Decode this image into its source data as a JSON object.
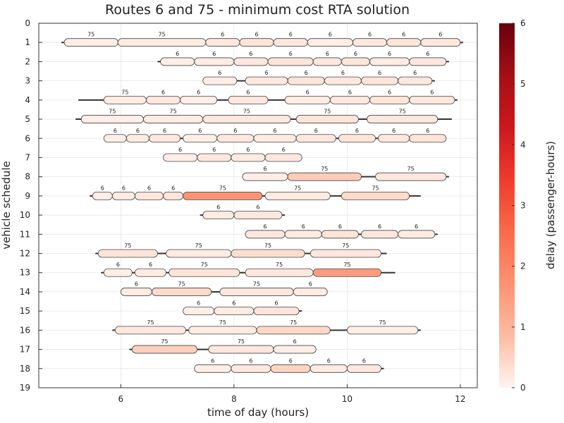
{
  "chart_data": {
    "type": "gantt",
    "title": "Routes 6 and 75 - minimum cost RTA solution",
    "xlabel": "time of day (hours)",
    "ylabel": "vehicle schedule",
    "xlim": [
      4.55,
      12.3
    ],
    "ylim": [
      0,
      19
    ],
    "xticks": [
      6,
      8,
      10,
      12
    ],
    "yticks": [
      0,
      1,
      2,
      3,
      4,
      5,
      6,
      7,
      8,
      9,
      10,
      11,
      12,
      13,
      14,
      15,
      16,
      17,
      18,
      19
    ],
    "grid": true,
    "colorbar": {
      "label": "delay (passenger-hours)",
      "min": 0,
      "max": 6,
      "ticks": [
        0,
        1,
        2,
        3,
        4,
        5,
        6
      ],
      "colors": [
        "#fff5f0",
        "#fcbba1",
        "#fc9272",
        "#fb6a4a",
        "#ef3b2c",
        "#cb181d",
        "#a50f15",
        "#67000d"
      ]
    },
    "schedules": [
      {
        "vehicle": 1,
        "span": [
          4.95,
          12.05
        ],
        "trips": [
          {
            "route": "75",
            "start": 5.0,
            "end": 5.95,
            "delay": 0.1
          },
          {
            "route": "75",
            "start": 5.95,
            "end": 7.5,
            "delay": 0.15
          },
          {
            "route": "6",
            "start": 7.5,
            "end": 8.1,
            "delay": 0.2
          },
          {
            "route": "6",
            "start": 8.1,
            "end": 8.7,
            "delay": 0.25
          },
          {
            "route": "6",
            "start": 8.7,
            "end": 9.3,
            "delay": 0.2
          },
          {
            "route": "6",
            "start": 9.3,
            "end": 10.1,
            "delay": 0.1
          },
          {
            "route": "6",
            "start": 10.1,
            "end": 10.7,
            "delay": 0.2
          },
          {
            "route": "6",
            "start": 10.7,
            "end": 11.3,
            "delay": 0.25
          },
          {
            "route": "6",
            "start": 11.3,
            "end": 12.0,
            "delay": 0.2
          }
        ]
      },
      {
        "vehicle": 2,
        "span": [
          6.65,
          11.8
        ],
        "trips": [
          {
            "route": "6",
            "start": 6.7,
            "end": 7.3,
            "delay": 0.1
          },
          {
            "route": "6",
            "start": 7.3,
            "end": 8.0,
            "delay": 0.15
          },
          {
            "route": "6",
            "start": 8.0,
            "end": 8.6,
            "delay": 0.2
          },
          {
            "route": "6",
            "start": 8.6,
            "end": 9.4,
            "delay": 0.25
          },
          {
            "route": "6",
            "start": 9.4,
            "end": 9.9,
            "delay": 0.2
          },
          {
            "route": "6",
            "start": 9.9,
            "end": 10.4,
            "delay": 0.25
          },
          {
            "route": "6",
            "start": 10.4,
            "end": 11.1,
            "delay": 0.15
          },
          {
            "route": "6",
            "start": 11.1,
            "end": 11.75,
            "delay": 0.2
          }
        ]
      },
      {
        "vehicle": 3,
        "span": [
          7.45,
          11.55
        ],
        "trips": [
          {
            "route": "6",
            "start": 7.45,
            "end": 8.05,
            "delay": 0.1
          },
          {
            "route": "6",
            "start": 8.2,
            "end": 8.95,
            "delay": 0.2
          },
          {
            "route": "6",
            "start": 8.95,
            "end": 9.6,
            "delay": 0.25
          },
          {
            "route": "6",
            "start": 9.6,
            "end": 10.25,
            "delay": 0.2
          },
          {
            "route": "6",
            "start": 10.25,
            "end": 10.9,
            "delay": 0.25
          },
          {
            "route": "6",
            "start": 10.9,
            "end": 11.5,
            "delay": 0.2
          }
        ]
      },
      {
        "vehicle": 4,
        "span": [
          5.25,
          11.95
        ],
        "trips": [
          {
            "route": "75",
            "start": 5.7,
            "end": 6.45,
            "delay": 0.15
          },
          {
            "route": "6",
            "start": 6.45,
            "end": 7.05,
            "delay": 0.2
          },
          {
            "route": "6",
            "start": 7.05,
            "end": 7.7,
            "delay": 0.1
          },
          {
            "route": "6",
            "start": 7.9,
            "end": 8.6,
            "delay": 0.2
          },
          {
            "route": "6",
            "start": 8.9,
            "end": 9.7,
            "delay": 0.15
          },
          {
            "route": "6",
            "start": 9.7,
            "end": 10.4,
            "delay": 0.2
          },
          {
            "route": "6",
            "start": 10.4,
            "end": 11.1,
            "delay": 0.25
          },
          {
            "route": "6",
            "start": 11.1,
            "end": 11.9,
            "delay": 0.2
          }
        ]
      },
      {
        "vehicle": 5,
        "span": [
          5.2,
          11.85
        ],
        "trips": [
          {
            "route": "75",
            "start": 5.3,
            "end": 6.4,
            "delay": 0.1
          },
          {
            "route": "75",
            "start": 6.4,
            "end": 7.45,
            "delay": 0.15
          },
          {
            "route": "75",
            "start": 7.45,
            "end": 9.0,
            "delay": 0.2
          },
          {
            "route": "75",
            "start": 9.1,
            "end": 10.2,
            "delay": 0.25
          },
          {
            "route": "75",
            "start": 10.35,
            "end": 11.6,
            "delay": 0.2
          }
        ]
      },
      {
        "vehicle": 6,
        "span": [
          5.7,
          11.75
        ],
        "trips": [
          {
            "route": "6",
            "start": 5.7,
            "end": 6.1,
            "delay": 0.1
          },
          {
            "route": "6",
            "start": 6.1,
            "end": 6.5,
            "delay": 0.15
          },
          {
            "route": "6",
            "start": 6.5,
            "end": 7.05,
            "delay": 0.2
          },
          {
            "route": "6",
            "start": 7.1,
            "end": 7.7,
            "delay": 0.1
          },
          {
            "route": "6",
            "start": 7.7,
            "end": 8.35,
            "delay": 0.2
          },
          {
            "route": "6",
            "start": 8.35,
            "end": 9.1,
            "delay": 0.15
          },
          {
            "route": "6",
            "start": 9.1,
            "end": 9.8,
            "delay": 0.2
          },
          {
            "route": "6",
            "start": 9.85,
            "end": 10.5,
            "delay": 0.25
          },
          {
            "route": "6",
            "start": 10.55,
            "end": 11.1,
            "delay": 0.2
          },
          {
            "route": "6",
            "start": 11.1,
            "end": 11.75,
            "delay": 0.25
          }
        ]
      },
      {
        "vehicle": 7,
        "span": [
          6.75,
          9.2
        ],
        "trips": [
          {
            "route": "6",
            "start": 6.75,
            "end": 7.35,
            "delay": 0.1
          },
          {
            "route": "6",
            "start": 7.35,
            "end": 7.95,
            "delay": 0.2
          },
          {
            "route": "6",
            "start": 7.95,
            "end": 8.55,
            "delay": 0.15
          },
          {
            "route": "6",
            "start": 8.55,
            "end": 9.2,
            "delay": 0.2
          }
        ]
      },
      {
        "vehicle": 8,
        "span": [
          8.15,
          11.8
        ],
        "trips": [
          {
            "route": "6",
            "start": 8.15,
            "end": 8.95,
            "delay": 0.1
          },
          {
            "route": "75",
            "start": 8.95,
            "end": 10.25,
            "delay": 0.6
          },
          {
            "route": "75",
            "start": 10.5,
            "end": 11.75,
            "delay": 0.2
          }
        ]
      },
      {
        "vehicle": 9,
        "span": [
          5.45,
          11.3
        ],
        "trips": [
          {
            "route": "6",
            "start": 5.5,
            "end": 5.85,
            "delay": 0.1
          },
          {
            "route": "6",
            "start": 5.85,
            "end": 6.25,
            "delay": 0.15
          },
          {
            "route": "6",
            "start": 6.25,
            "end": 6.75,
            "delay": 0.2
          },
          {
            "route": "6",
            "start": 6.75,
            "end": 7.1,
            "delay": 0.25
          },
          {
            "route": "75",
            "start": 7.1,
            "end": 8.5,
            "delay": 1.7
          },
          {
            "route": "75",
            "start": 8.55,
            "end": 9.7,
            "delay": 0.15
          },
          {
            "route": "75",
            "start": 9.9,
            "end": 11.1,
            "delay": 0.4
          }
        ]
      },
      {
        "vehicle": 10,
        "span": [
          7.4,
          8.9
        ],
        "trips": [
          {
            "route": "6",
            "start": 7.45,
            "end": 8.0,
            "delay": 0.15
          },
          {
            "route": "6",
            "start": 8.0,
            "end": 8.85,
            "delay": 0.2
          }
        ]
      },
      {
        "vehicle": 11,
        "span": [
          8.2,
          11.6
        ],
        "trips": [
          {
            "route": "6",
            "start": 8.2,
            "end": 8.9,
            "delay": 0.2
          },
          {
            "route": "6",
            "start": 8.9,
            "end": 9.55,
            "delay": 0.15
          },
          {
            "route": "6",
            "start": 9.55,
            "end": 10.2,
            "delay": 0.25
          },
          {
            "route": "6",
            "start": 10.25,
            "end": 10.9,
            "delay": 0.2
          },
          {
            "route": "6",
            "start": 10.9,
            "end": 11.55,
            "delay": 0.15
          }
        ]
      },
      {
        "vehicle": 12,
        "span": [
          5.55,
          10.7
        ],
        "trips": [
          {
            "route": "75",
            "start": 5.6,
            "end": 6.65,
            "delay": 0.25
          },
          {
            "route": "75",
            "start": 6.8,
            "end": 7.95,
            "delay": 0.15
          },
          {
            "route": "75",
            "start": 7.95,
            "end": 9.25,
            "delay": 0.35
          },
          {
            "route": "75",
            "start": 9.35,
            "end": 10.6,
            "delay": 0.2
          }
        ]
      },
      {
        "vehicle": 13,
        "span": [
          5.65,
          10.85
        ],
        "trips": [
          {
            "route": "6",
            "start": 5.7,
            "end": 6.2,
            "delay": 0.1
          },
          {
            "route": "6",
            "start": 6.25,
            "end": 6.8,
            "delay": 0.15
          },
          {
            "route": "75",
            "start": 6.85,
            "end": 8.1,
            "delay": 0.25
          },
          {
            "route": "75",
            "start": 8.2,
            "end": 9.4,
            "delay": 0.2
          },
          {
            "route": "75",
            "start": 9.4,
            "end": 10.6,
            "delay": 1.5
          }
        ]
      },
      {
        "vehicle": 14,
        "span": [
          6.0,
          9.65
        ],
        "trips": [
          {
            "route": "6",
            "start": 6.0,
            "end": 6.55,
            "delay": 0.15
          },
          {
            "route": "75",
            "start": 6.55,
            "end": 7.6,
            "delay": 0.4
          },
          {
            "route": "75",
            "start": 7.75,
            "end": 9.05,
            "delay": 0.2
          },
          {
            "route": "6",
            "start": 9.05,
            "end": 9.65,
            "delay": 0.15
          }
        ]
      },
      {
        "vehicle": 15,
        "span": [
          7.1,
          9.2
        ],
        "trips": [
          {
            "route": "6",
            "start": 7.1,
            "end": 7.65,
            "delay": 0.1
          },
          {
            "route": "6",
            "start": 7.65,
            "end": 8.35,
            "delay": 0.15
          },
          {
            "route": "6",
            "start": 8.35,
            "end": 9.15,
            "delay": 0.25
          }
        ]
      },
      {
        "vehicle": 16,
        "span": [
          5.85,
          11.3
        ],
        "trips": [
          {
            "route": "75",
            "start": 5.9,
            "end": 7.15,
            "delay": 0.2
          },
          {
            "route": "75",
            "start": 7.2,
            "end": 8.4,
            "delay": 0.15
          },
          {
            "route": "75",
            "start": 8.4,
            "end": 9.7,
            "delay": 0.45
          },
          {
            "route": "75",
            "start": 10.0,
            "end": 11.25,
            "delay": 0.1
          }
        ]
      },
      {
        "vehicle": 17,
        "span": [
          6.15,
          9.45
        ],
        "trips": [
          {
            "route": "75",
            "start": 6.2,
            "end": 7.35,
            "delay": 0.55
          },
          {
            "route": "75",
            "start": 7.55,
            "end": 8.7,
            "delay": 0.2
          },
          {
            "route": "6",
            "start": 8.7,
            "end": 9.45,
            "delay": 0.1
          }
        ]
      },
      {
        "vehicle": 18,
        "span": [
          7.3,
          10.65
        ],
        "trips": [
          {
            "route": "6",
            "start": 7.3,
            "end": 7.95,
            "delay": 0.1
          },
          {
            "route": "6",
            "start": 7.95,
            "end": 8.65,
            "delay": 0.2
          },
          {
            "route": "6",
            "start": 8.65,
            "end": 9.35,
            "delay": 0.5
          },
          {
            "route": "6",
            "start": 9.35,
            "end": 10.0,
            "delay": 0.15
          },
          {
            "route": "6",
            "start": 10.0,
            "end": 10.6,
            "delay": 0.2
          }
        ]
      }
    ]
  }
}
